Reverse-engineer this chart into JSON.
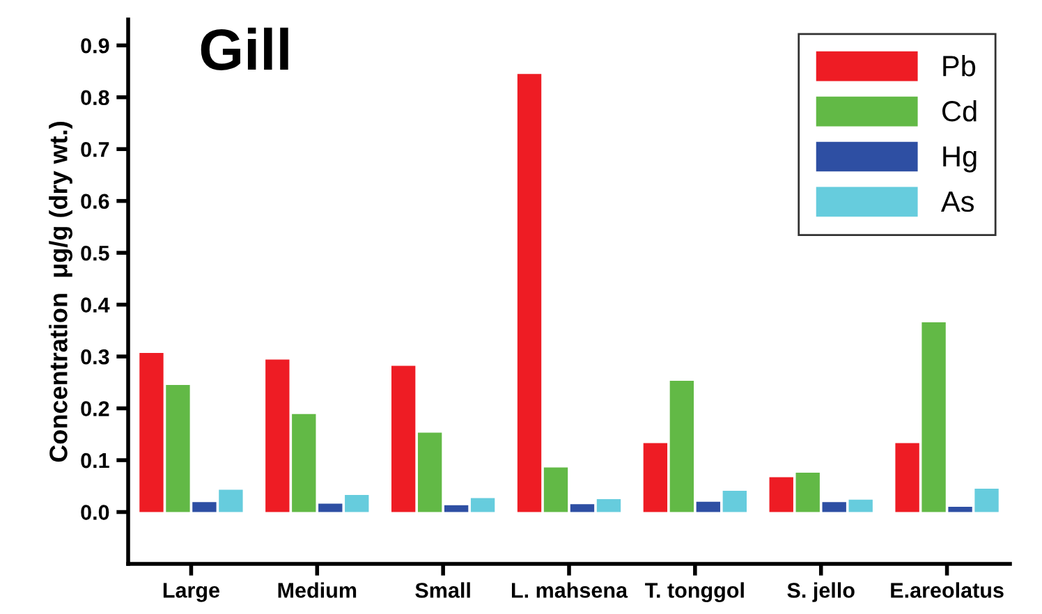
{
  "chart_data": {
    "type": "bar",
    "title": "Gill",
    "ylabel": "Concentration  μg/g (dry wt.)",
    "categories": [
      "Large",
      "Medium",
      "Small",
      "L. mahsena",
      "T. tonggol",
      "S. jello",
      "E.areolatus"
    ],
    "series": [
      {
        "name": "Pb",
        "color": "#ee1c24",
        "values": [
          0.307,
          0.294,
          0.282,
          0.845,
          0.133,
          0.067,
          0.133
        ]
      },
      {
        "name": "Cd",
        "color": "#62b946",
        "values": [
          0.245,
          0.189,
          0.153,
          0.086,
          0.253,
          0.076,
          0.366
        ]
      },
      {
        "name": "Hg",
        "color": "#2e4fa3",
        "values": [
          0.019,
          0.016,
          0.013,
          0.015,
          0.02,
          0.019,
          0.01
        ]
      },
      {
        "name": "As",
        "color": "#66ccdd",
        "values": [
          0.043,
          0.033,
          0.027,
          0.025,
          0.041,
          0.024,
          0.045
        ]
      }
    ],
    "ylim": [
      -0.1,
      0.95
    ],
    "yticks": [
      {
        "value": 0,
        "label": "0.0"
      },
      0.1,
      0.2,
      0.3,
      0.4,
      0.5,
      0.6,
      0.7,
      0.8,
      0.9
    ],
    "grid": false,
    "legend": "top right"
  }
}
